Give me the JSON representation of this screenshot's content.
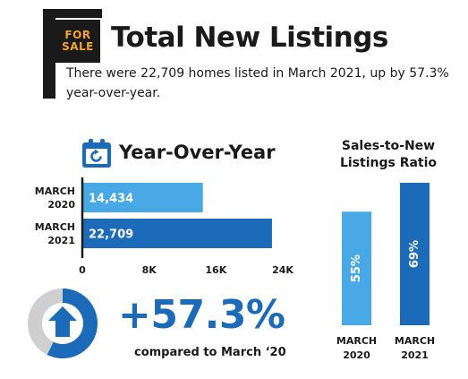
{
  "header": {
    "sign_line1": "FOR",
    "sign_line2": "SALE",
    "title": "Total New Listings",
    "subtitle": "There were 22,709 homes listed in March 2021, up by 57.3% year-over-year."
  },
  "yoy": {
    "title": "Year-Over-Year",
    "icon": "calendar-refresh-icon"
  },
  "ratio": {
    "title_line1": "Sales-to-New",
    "title_line2": "Listings Ratio"
  },
  "change": {
    "value": "+57.3%",
    "caption": "compared to March ‘20",
    "icon": "up-arrow-icon",
    "ring_fill_fraction": 0.573
  },
  "colors": {
    "light_blue": "#48a9e6",
    "dark_blue": "#1b6bb8",
    "gray": "#cfcfcf",
    "sign_text": "#f2a52a"
  },
  "chart_data": [
    {
      "type": "bar",
      "orientation": "horizontal",
      "categories": [
        [
          "MARCH",
          "2020"
        ],
        [
          "MARCH",
          "2021"
        ]
      ],
      "values": [
        14434,
        22709
      ],
      "value_labels": [
        "14,434",
        "22,709"
      ],
      "xlim": [
        0,
        24000
      ],
      "ticks": [
        0,
        8000,
        16000,
        24000
      ],
      "tick_labels": [
        "0",
        "8K",
        "16K",
        "24K"
      ],
      "grid": false
    },
    {
      "type": "bar",
      "orientation": "vertical",
      "categories": [
        [
          "MARCH",
          "2020"
        ],
        [
          "MARCH",
          "2021"
        ]
      ],
      "values": [
        55,
        69
      ],
      "value_labels": [
        "55%",
        "69%"
      ],
      "ylim": [
        0,
        69
      ],
      "grid": false
    }
  ]
}
